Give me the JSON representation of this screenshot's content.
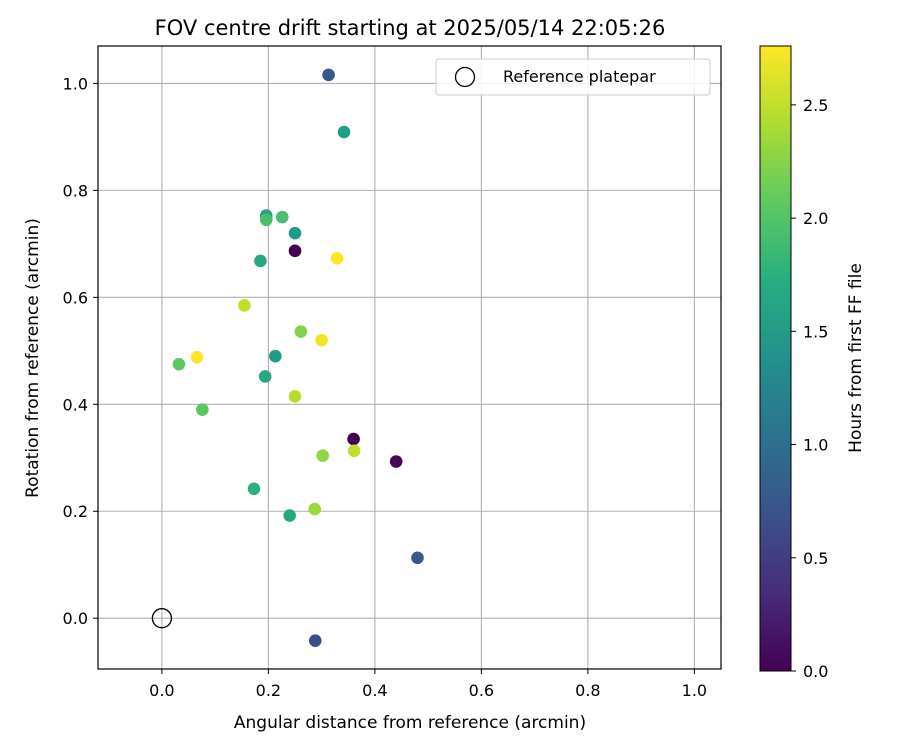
{
  "chart_data": {
    "type": "scatter",
    "title": "FOV centre drift starting at 2025/05/14 22:05:26",
    "xlabel": "Angular distance from reference (arcmin)",
    "ylabel": "Rotation from reference (arcmin)",
    "xlim": [
      -0.12,
      1.05
    ],
    "ylim": [
      -0.095,
      1.07
    ],
    "xticks": [
      "0.0",
      "0.2",
      "0.4",
      "0.6",
      "0.8",
      "1.0"
    ],
    "xtick_values": [
      0.0,
      0.2,
      0.4,
      0.6,
      0.8,
      1.0
    ],
    "yticks": [
      "0.0",
      "0.2",
      "0.4",
      "0.6",
      "0.8",
      "1.0"
    ],
    "ytick_values": [
      0.0,
      0.2,
      0.4,
      0.6,
      0.8,
      1.0
    ],
    "grid": true,
    "legend_position": "top-right",
    "legend_label": "Reference platepar",
    "reference_point": {
      "x": 0.0,
      "y": 0.0
    },
    "colorbar": {
      "label": "Hours from first FF file",
      "range": [
        0.0,
        2.76
      ],
      "ticks": [
        "0.0",
        "0.5",
        "1.0",
        "1.5",
        "2.0",
        "2.5"
      ],
      "tick_values": [
        0.0,
        0.5,
        1.0,
        1.5,
        2.0,
        2.5
      ],
      "colormap": "viridis"
    },
    "points": [
      {
        "x": 0.25,
        "y": 0.687,
        "c": 0.0
      },
      {
        "x": 0.36,
        "y": 0.335,
        "c": 0.0
      },
      {
        "x": 0.44,
        "y": 0.293,
        "c": 0.05
      },
      {
        "x": 0.288,
        "y": -0.042,
        "c": 0.65
      },
      {
        "x": 0.313,
        "y": 1.016,
        "c": 0.75
      },
      {
        "x": 0.48,
        "y": 0.113,
        "c": 0.75
      },
      {
        "x": 0.213,
        "y": 0.49,
        "c": 1.5
      },
      {
        "x": 0.25,
        "y": 0.72,
        "c": 1.5
      },
      {
        "x": 0.342,
        "y": 0.909,
        "c": 1.55
      },
      {
        "x": 0.196,
        "y": 0.753,
        "c": 1.6
      },
      {
        "x": 0.185,
        "y": 0.668,
        "c": 1.65
      },
      {
        "x": 0.194,
        "y": 0.452,
        "c": 1.65
      },
      {
        "x": 0.24,
        "y": 0.192,
        "c": 1.65
      },
      {
        "x": 0.173,
        "y": 0.242,
        "c": 1.75
      },
      {
        "x": 0.196,
        "y": 0.745,
        "c": 1.95
      },
      {
        "x": 0.226,
        "y": 0.75,
        "c": 1.95
      },
      {
        "x": 0.032,
        "y": 0.475,
        "c": 2.05
      },
      {
        "x": 0.076,
        "y": 0.39,
        "c": 2.05
      },
      {
        "x": 0.261,
        "y": 0.536,
        "c": 2.25
      },
      {
        "x": 0.302,
        "y": 0.304,
        "c": 2.3
      },
      {
        "x": 0.287,
        "y": 0.204,
        "c": 2.35
      },
      {
        "x": 0.25,
        "y": 0.415,
        "c": 2.45
      },
      {
        "x": 0.155,
        "y": 0.585,
        "c": 2.5
      },
      {
        "x": 0.361,
        "y": 0.313,
        "c": 2.5
      },
      {
        "x": 0.3,
        "y": 0.52,
        "c": 2.7
      },
      {
        "x": 0.329,
        "y": 0.673,
        "c": 2.75
      },
      {
        "x": 0.066,
        "y": 0.488,
        "c": 2.75
      }
    ]
  }
}
